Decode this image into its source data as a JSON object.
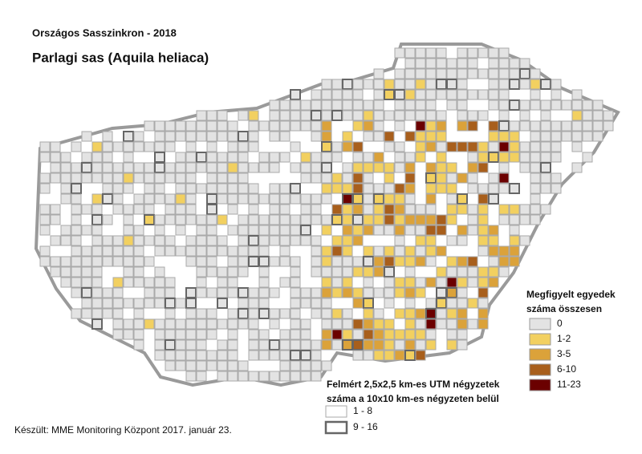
{
  "header": {
    "title": "Országos Sasszinkron - 2018",
    "subtitle": "Parlagi sas (Aquila heliaca)"
  },
  "legend_count": {
    "title_lines": [
      "Megfigyelt egyedek",
      "száma összesen"
    ],
    "items": [
      {
        "label": "0",
        "color": "#e3e3e3"
      },
      {
        "label": "1-2",
        "color": "#f2d060"
      },
      {
        "label": "3-5",
        "color": "#dba23a"
      },
      {
        "label": "6-10",
        "color": "#a85f1c"
      },
      {
        "label": "11-23",
        "color": "#6b0000"
      }
    ]
  },
  "legend_squares": {
    "title_lines": [
      "Felmért 2,5x2,5 km-es UTM négyzetek",
      "száma a 10x10 km-es négyzeten belül"
    ],
    "items": [
      {
        "label": "1 - 8",
        "stroke": "#aaaaaa",
        "width": 1
      },
      {
        "label": "9 - 16",
        "stroke": "#666666",
        "width": 2.5
      }
    ]
  },
  "footer": "Készült: MME Monitoring Központ 2017. január 23."
}
